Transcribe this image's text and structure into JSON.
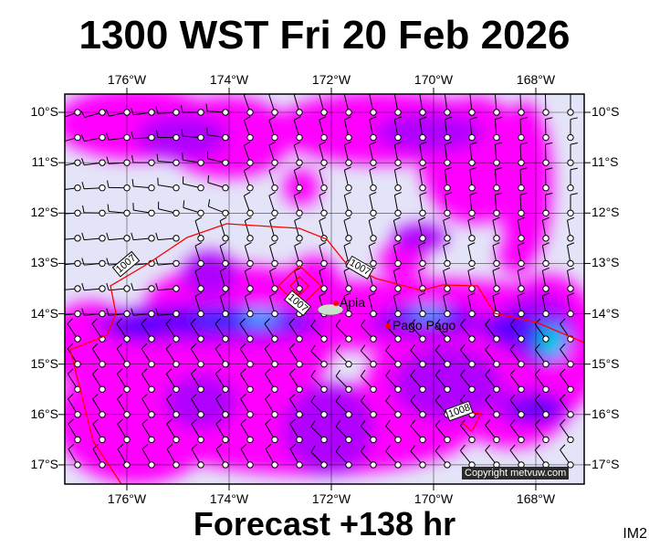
{
  "title": "1300 WST Fri 20 Feb 2026",
  "footer": "Forecast +138 hr",
  "corner_label": "IM2",
  "copyright": "Copyright metvuw.com",
  "longitudes": [
    "176°W",
    "174°W",
    "172°W",
    "170°W",
    "168°W"
  ],
  "latitudes": [
    "10°S",
    "11°S",
    "12°S",
    "13°S",
    "14°S",
    "15°S",
    "16°S",
    "17°S"
  ],
  "places": [
    {
      "name": "Apia"
    },
    {
      "name": "Pago Pago"
    }
  ],
  "isobar_labels": [
    "1007",
    "1007",
    "1007",
    "1008"
  ],
  "colors": {
    "background": "#e4e4f8",
    "rain_light": "#ff00ff",
    "rain_moderate": "#b000ff",
    "rain_heavy": "#5a00ff",
    "rain_very_heavy": "#0030ff",
    "rain_extreme": "#00c8ff",
    "rain_peak": "#00e070",
    "isobar": "#ff0000"
  }
}
